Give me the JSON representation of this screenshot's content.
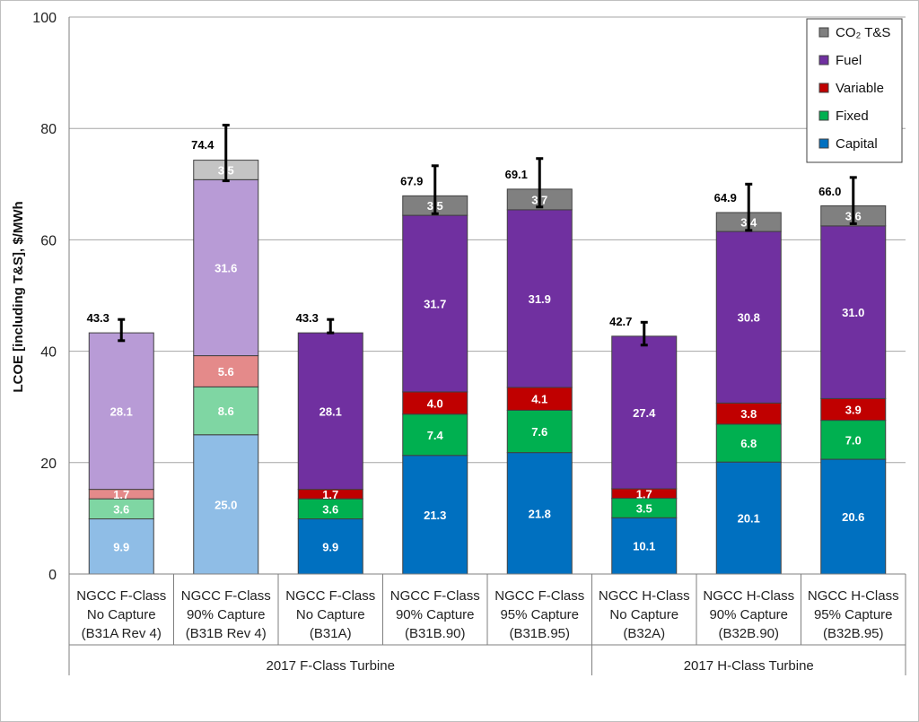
{
  "chart_data": {
    "type": "bar",
    "stacked": true,
    "ylabel": "LCOE [including T&S], $/MWh",
    "ylim": [
      0,
      100
    ],
    "yticks": [
      "0",
      "20",
      "40",
      "60",
      "80",
      "100"
    ],
    "grid": true,
    "legend_position": "top-right",
    "categories": [
      [
        "NGCC F-Class",
        "No Capture",
        "(B31A Rev 4)"
      ],
      [
        "NGCC F-Class",
        "90% Capture",
        "(B31B Rev 4)"
      ],
      [
        "NGCC F-Class",
        "No Capture",
        "(B31A)"
      ],
      [
        "NGCC F-Class",
        "90% Capture",
        "(B31B.90)"
      ],
      [
        "NGCC F-Class",
        "95% Capture",
        "(B31B.95)"
      ],
      [
        "NGCC H-Class",
        "No Capture",
        "(B32A)"
      ],
      [
        "NGCC H-Class",
        "90% Capture",
        "(B32B.90)"
      ],
      [
        "NGCC H-Class",
        "95% Capture",
        "(B32B.95)"
      ]
    ],
    "groups": [
      {
        "label": "2017 F-Class Turbine",
        "start": 0,
        "end": 4
      },
      {
        "label": "2017 H-Class Turbine",
        "start": 5,
        "end": 7
      }
    ],
    "faded_categories": [
      0,
      1
    ],
    "series": [
      {
        "name": "Capital",
        "color": "#0070c0",
        "faded_color": "#8fbde6",
        "values": [
          9.9,
          25.0,
          9.9,
          21.3,
          21.8,
          10.1,
          20.1,
          20.6
        ],
        "labels": [
          "9.9",
          "25.0",
          "9.9",
          "21.3",
          "21.8",
          "10.1",
          "20.1",
          "20.6"
        ]
      },
      {
        "name": "Fixed",
        "color": "#00b050",
        "faded_color": "#7fd6a3",
        "values": [
          3.6,
          8.6,
          3.6,
          7.4,
          7.6,
          3.5,
          6.8,
          7.0
        ],
        "labels": [
          "3.6",
          "8.6",
          "3.6",
          "7.4",
          "7.6",
          "3.5",
          "6.8",
          "7.0"
        ]
      },
      {
        "name": "Variable",
        "color": "#c00000",
        "faded_color": "#e48a8a",
        "values": [
          1.7,
          5.6,
          1.7,
          4.0,
          4.1,
          1.7,
          3.8,
          3.9
        ],
        "labels": [
          "1.7",
          "5.6",
          "1.7",
          "4.0",
          "4.1",
          "1.7",
          "3.8",
          "3.9"
        ]
      },
      {
        "name": "Fuel",
        "color": "#7030a0",
        "faded_color": "#b89bd6",
        "values": [
          28.1,
          31.6,
          28.1,
          31.7,
          31.9,
          27.4,
          30.8,
          31.0
        ],
        "labels": [
          "28.1",
          "31.6",
          "28.1",
          "31.7",
          "31.9",
          "27.4",
          "30.8",
          "31.0"
        ]
      },
      {
        "name": "CO₂ T&S",
        "color": "#808080",
        "faded_color": "#c4c4c4",
        "values": [
          0,
          3.5,
          0,
          3.5,
          3.7,
          0,
          3.4,
          3.6
        ],
        "labels": [
          "",
          "3.5",
          "",
          "3.5",
          "3.7",
          "",
          "3.4",
          "3.6"
        ]
      }
    ],
    "totals": [
      43.3,
      74.4,
      43.3,
      67.9,
      69.1,
      42.7,
      64.9,
      66.0
    ],
    "total_labels": [
      "43.3",
      "74.4",
      "43.3",
      "67.9",
      "69.1",
      "42.7",
      "64.9",
      "66.0"
    ],
    "error_bars": [
      [
        41.9,
        45.7
      ],
      [
        70.6,
        80.6
      ],
      [
        43.3,
        45.7
      ],
      [
        64.7,
        73.3
      ],
      [
        65.9,
        74.6
      ],
      [
        41.1,
        45.2
      ],
      [
        61.7,
        70.0
      ],
      [
        62.9,
        71.2
      ]
    ],
    "legend_order": [
      "CO₂ T&S",
      "Fuel",
      "Variable",
      "Fixed",
      "Capital"
    ]
  }
}
